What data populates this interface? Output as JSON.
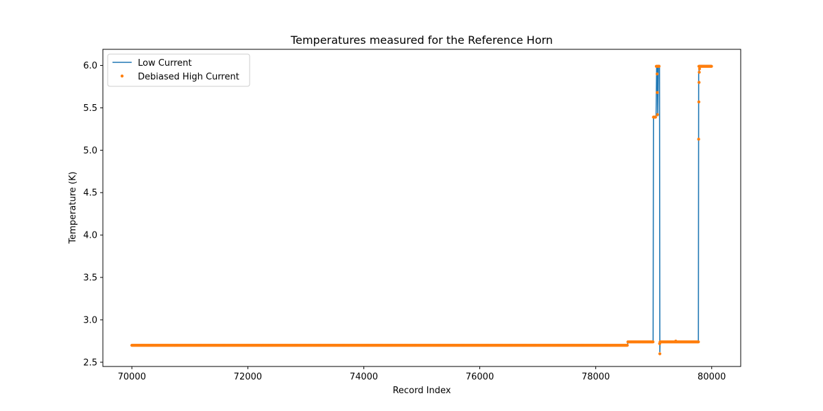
{
  "chart_data": {
    "type": "line",
    "title": "Temperatures measured for the Reference Horn",
    "xlabel": "Record Index",
    "ylabel": "Temperature (K)",
    "xlim": [
      69500,
      80500
    ],
    "ylim": [
      2.45,
      6.19
    ],
    "xticks": [
      70000,
      72000,
      74000,
      76000,
      78000,
      80000
    ],
    "yticks": [
      2.5,
      3.0,
      3.5,
      4.0,
      4.5,
      5.0,
      5.5,
      6.0
    ],
    "xtick_labels": [
      "70000",
      "72000",
      "74000",
      "76000",
      "78000",
      "80000"
    ],
    "ytick_labels": [
      "2.5",
      "3.0",
      "3.5",
      "4.0",
      "4.5",
      "5.0",
      "5.5",
      "6.0"
    ],
    "legend_position": "upper-left",
    "grid": false,
    "series": [
      {
        "name": "Low Current",
        "kind": "line",
        "color": "#1f77b4",
        "points": [
          [
            70000,
            2.7
          ],
          [
            78550,
            2.7
          ],
          [
            78555,
            2.74
          ],
          [
            78990,
            2.74
          ],
          [
            78995,
            5.39
          ],
          [
            79040,
            5.39
          ],
          [
            79050,
            5.97
          ],
          [
            79060,
            6.0
          ],
          [
            79070,
            5.4
          ],
          [
            79080,
            6.0
          ],
          [
            79100,
            6.0
          ],
          [
            79105,
            2.62
          ],
          [
            79110,
            2.74
          ],
          [
            79770,
            2.74
          ],
          [
            79775,
            5.9
          ],
          [
            79790,
            6.0
          ],
          [
            80000,
            6.0
          ]
        ]
      },
      {
        "name": "Debiased High Current",
        "kind": "scatter",
        "color": "#ff7f0e",
        "segments": [
          {
            "x_start": 70000,
            "x_end": 78550,
            "y": 2.7
          },
          {
            "x_start": 78555,
            "x_end": 78990,
            "y": 2.74
          },
          {
            "x_start": 78995,
            "x_end": 79040,
            "y": 5.39
          },
          {
            "x_start": 79045,
            "x_end": 79100,
            "y": 5.99
          },
          {
            "x_start": 79110,
            "x_end": 79770,
            "y": 2.74
          },
          {
            "x_start": 79780,
            "x_end": 80000,
            "y": 5.99
          }
        ],
        "points": [
          [
            79060,
            5.68
          ],
          [
            79058,
            5.9
          ],
          [
            79065,
            5.42
          ],
          [
            79105,
            2.6
          ],
          [
            79102,
            2.72
          ],
          [
            79380,
            2.75
          ],
          [
            79775,
            5.13
          ],
          [
            79778,
            5.57
          ],
          [
            79782,
            5.8
          ],
          [
            79785,
            5.92
          ],
          [
            79790,
            5.96
          ]
        ]
      }
    ]
  }
}
